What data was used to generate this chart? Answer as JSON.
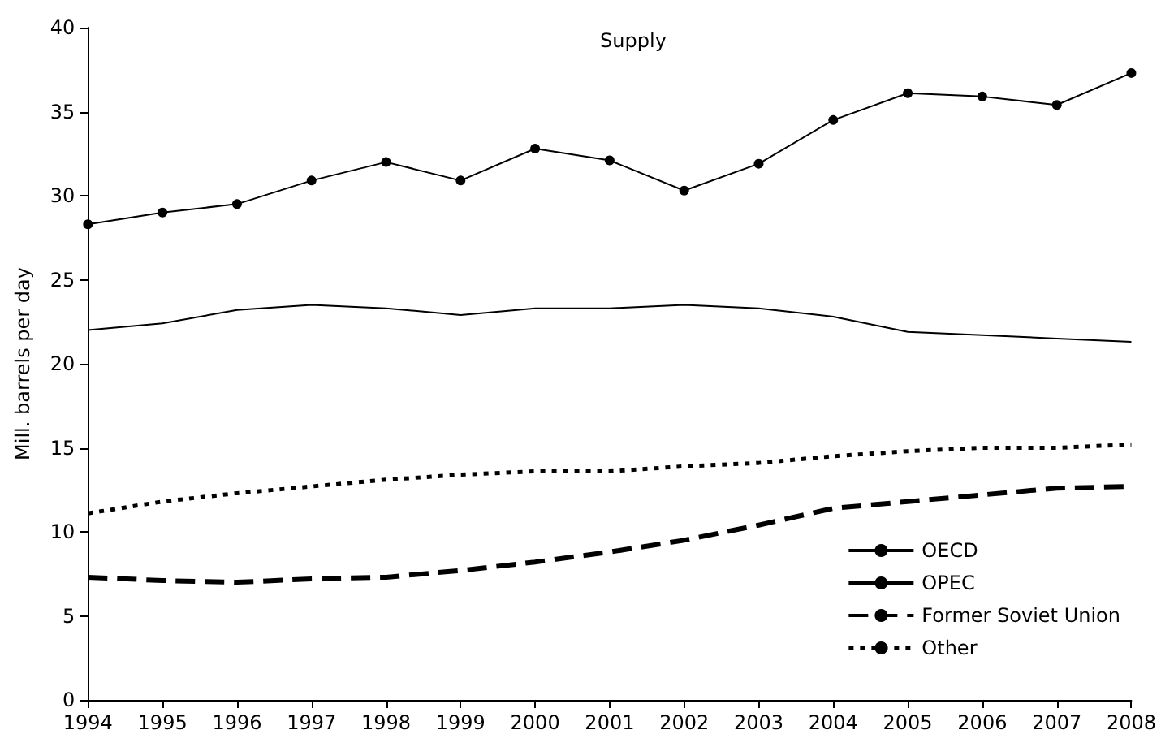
{
  "chart_data": {
    "type": "line",
    "title": "Supply",
    "ylabel": "Mill. barrels per day",
    "categories": [
      "1994",
      "1995",
      "1996",
      "1997",
      "1998",
      "1999",
      "2000",
      "2001",
      "2002",
      "2003",
      "2004",
      "2005",
      "2006",
      "2007",
      "2008"
    ],
    "series": [
      {
        "name": "OECD",
        "color": "#000000",
        "marker": "none",
        "line_style": "solid",
        "values": [
          22.0,
          22.4,
          23.2,
          23.5,
          23.3,
          22.9,
          23.3,
          23.3,
          23.5,
          23.3,
          22.8,
          21.9,
          21.7,
          21.5,
          21.3
        ]
      },
      {
        "name": "OPEC",
        "color": "#000000",
        "marker": "circle",
        "line_style": "solid",
        "values": [
          28.3,
          29.0,
          29.5,
          30.9,
          32.0,
          30.9,
          32.8,
          32.1,
          30.3,
          31.9,
          34.5,
          36.1,
          35.9,
          35.4,
          37.3
        ]
      },
      {
        "name": "Former Soviet Union",
        "color": "#000000",
        "marker": "none",
        "line_style": "dashed",
        "values": [
          7.3,
          7.1,
          7.0,
          7.2,
          7.3,
          7.7,
          8.2,
          8.8,
          9.5,
          10.4,
          11.4,
          11.8,
          12.2,
          12.6,
          12.7
        ]
      },
      {
        "name": "Other",
        "color": "#000000",
        "marker": "none",
        "line_style": "dotted",
        "values": [
          11.1,
          11.8,
          12.3,
          12.7,
          13.1,
          13.4,
          13.6,
          13.6,
          13.9,
          14.1,
          14.5,
          14.8,
          15.0,
          15.0,
          15.2
        ]
      }
    ],
    "ylim": [
      0,
      40
    ],
    "yticks": [
      0,
      5,
      10,
      15,
      20,
      25,
      30,
      35,
      40
    ],
    "grid": false,
    "legend": "bottom right"
  }
}
